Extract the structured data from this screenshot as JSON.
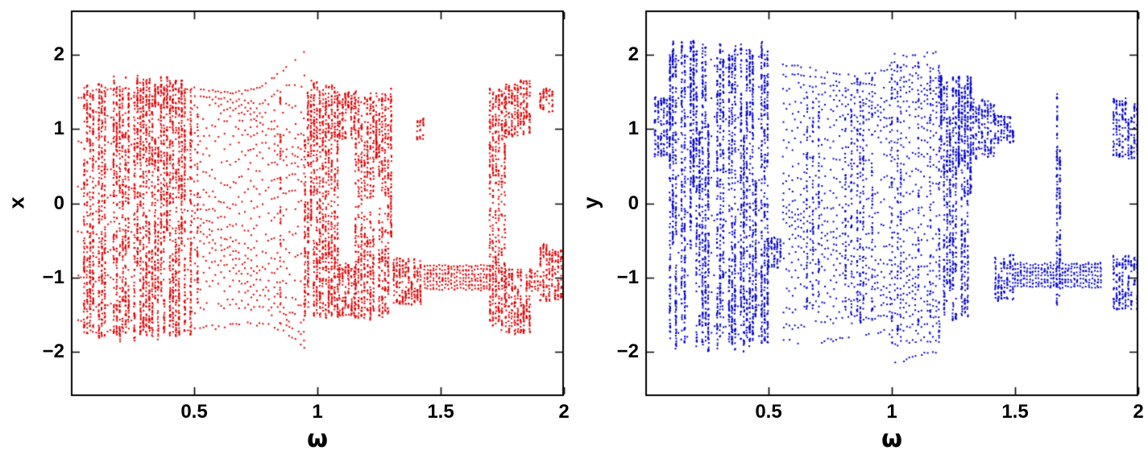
{
  "figure": {
    "background": "#ffffff",
    "frame_color": "#000000",
    "description": "Two side-by-side bifurcation diagrams versus driving frequency omega: left panel x (red points), right panel y (blue points)."
  },
  "chart_data": [
    {
      "type": "scatter",
      "title": "",
      "xlabel": "ω",
      "ylabel": "x",
      "xlim": [
        0,
        2
      ],
      "ylim": [
        -2.6,
        2.6
      ],
      "xticks": {
        "values": [
          0.5,
          1,
          1.5,
          2
        ],
        "labels": [
          "0.5",
          "1",
          "1.5",
          "2"
        ]
      },
      "yticks": {
        "values": [
          -2,
          -1,
          0,
          1,
          2
        ],
        "labels": [
          "−2",
          "−1",
          "0",
          "1",
          "2"
        ]
      },
      "marker_color": "#dd0000",
      "marker_size": 2,
      "grid": false,
      "legend": null,
      "seed": 20240521,
      "omega_step": 0.012,
      "regions": [
        {
          "from": 0.03,
          "to": 0.49,
          "mode": "chaotic",
          "bands": [
            [
              -1.9,
              1.72
            ]
          ],
          "density": 1.0,
          "window_prob": 0.12
        },
        {
          "from": 0.49,
          "to": 0.95,
          "mode": "periodic",
          "bands": [
            [
              -2.1,
              2.05
            ]
          ],
          "branches": 16,
          "branch_var": 8,
          "curve": 1.5,
          "grow": 0.25,
          "dense_prob": 0.08
        },
        {
          "from": 0.95,
          "to": 1.09,
          "mode": "chaotic",
          "bands": [
            [
              -1.62,
              1.66
            ]
          ],
          "density": 1.0
        },
        {
          "from": 1.09,
          "to": 1.155,
          "mode": "chaotic",
          "bands": [
            [
              0.85,
              1.52
            ],
            [
              -1.55,
              -0.8
            ]
          ],
          "density": 0.9
        },
        {
          "from": 1.155,
          "to": 1.31,
          "mode": "chaotic",
          "bands": [
            [
              -1.6,
              1.55
            ]
          ],
          "density": 0.9,
          "window_prob": 0.1
        },
        {
          "from": 1.31,
          "to": 1.42,
          "mode": "chaotic",
          "bands": [
            [
              -1.38,
              -0.72
            ]
          ],
          "density": 1.0
        },
        {
          "from": 1.405,
          "to": 1.435,
          "mode": "chaotic",
          "bands": [
            [
              0.85,
              1.15
            ]
          ],
          "density": 0.8
        },
        {
          "from": 1.435,
          "to": 1.7,
          "mode": "flat",
          "bands": [
            [
              -1.18,
              -0.82
            ]
          ],
          "rows": 7
        },
        {
          "from": 1.7,
          "to": 1.765,
          "mode": "chaotic",
          "bands": [
            [
              -1.75,
              1.62
            ]
          ],
          "density": 0.9
        },
        {
          "from": 1.765,
          "to": 1.87,
          "mode": "chaotic",
          "bands": [
            [
              0.88,
              1.66
            ],
            [
              -1.78,
              -0.85
            ]
          ],
          "density": 0.9
        },
        {
          "from": 1.87,
          "to": 1.905,
          "mode": "flat",
          "bands": [
            [
              -1.2,
              -0.9
            ]
          ],
          "rows": 5
        },
        {
          "from": 1.905,
          "to": 1.965,
          "mode": "chaotic",
          "bands": [
            [
              -1.35,
              -0.55
            ],
            [
              1.22,
              1.55
            ]
          ],
          "density": 0.8
        },
        {
          "from": 1.965,
          "to": 2.0,
          "mode": "chaotic",
          "bands": [
            [
              -1.32,
              -0.6
            ]
          ],
          "density": 0.9
        }
      ]
    },
    {
      "type": "scatter",
      "title": "",
      "xlabel": "ω",
      "ylabel": "y",
      "xlim": [
        0,
        2
      ],
      "ylim": [
        -2.6,
        2.6
      ],
      "xticks": {
        "values": [
          0.5,
          1,
          1.5,
          2
        ],
        "labels": [
          "0.5",
          "1",
          "1.5",
          "2"
        ]
      },
      "yticks": {
        "values": [
          -2,
          -1,
          0,
          1,
          2
        ],
        "labels": [
          "−2",
          "−1",
          "0",
          "1",
          "2"
        ]
      },
      "marker_color": "#0000cc",
      "marker_size": 2,
      "grid": false,
      "legend": null,
      "seed": 990917,
      "omega_step": 0.012,
      "regions": [
        {
          "from": 0.04,
          "to": 0.1,
          "mode": "chaotic",
          "bands": [
            [
              0.6,
              1.45
            ]
          ],
          "density": 0.9
        },
        {
          "from": 0.1,
          "to": 0.5,
          "mode": "chaotic",
          "bands": [
            [
              -2.0,
              2.2
            ]
          ],
          "density": 1.0,
          "window_prob": 0.12
        },
        {
          "from": 0.5,
          "to": 0.56,
          "mode": "chaotic",
          "bands": [
            [
              -0.88,
              -0.45
            ]
          ],
          "density": 0.9
        },
        {
          "from": 0.56,
          "to": 1.0,
          "mode": "periodic",
          "bands": [
            [
              -2.05,
              2.1
            ]
          ],
          "branches": 18,
          "branch_var": 8,
          "curve": 1.2,
          "grow": 0.15,
          "dense_prob": 0.25
        },
        {
          "from": 1.0,
          "to": 1.2,
          "mode": "periodic",
          "bands": [
            [
              -2.3,
              2.3
            ]
          ],
          "branches": 26,
          "branch_var": 10,
          "curve": 1.0,
          "dense_prob": 0.3
        },
        {
          "from": 1.2,
          "to": 1.33,
          "mode": "chaotic",
          "bands": [
            [
              -1.6,
              1.72
            ]
          ],
          "density": 1.0
        },
        {
          "from": 1.33,
          "to": 1.42,
          "mode": "chaotic",
          "bands": [
            [
              0.58,
              1.42
            ]
          ],
          "density": 0.7
        },
        {
          "from": 1.42,
          "to": 1.5,
          "mode": "chaotic",
          "bands": [
            [
              0.8,
              1.2
            ],
            [
              -1.32,
              -0.68
            ]
          ],
          "density": 0.7
        },
        {
          "from": 1.5,
          "to": 1.85,
          "mode": "flat",
          "bands": [
            [
              -1.15,
              -0.8
            ]
          ],
          "rows": 7
        },
        {
          "from": 1.67,
          "to": 1.69,
          "mode": "chaotic",
          "bands": [
            [
              -1.5,
              1.5
            ]
          ],
          "density": 1.0
        },
        {
          "from": 1.9,
          "to": 2.0,
          "mode": "chaotic",
          "bands": [
            [
              0.6,
              1.42
            ],
            [
              -1.45,
              -0.7
            ]
          ],
          "density": 0.8
        }
      ]
    }
  ]
}
